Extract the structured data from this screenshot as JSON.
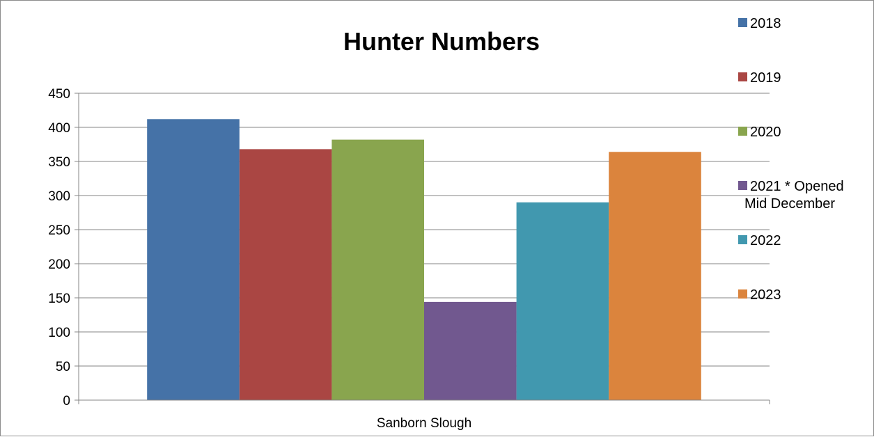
{
  "chart_data": {
    "type": "bar",
    "title": "Hunter Numbers",
    "categories": [
      "Sanborn Slough"
    ],
    "series": [
      {
        "name": "2018",
        "values": [
          412
        ],
        "color": "#4572a7"
      },
      {
        "name": "2019",
        "values": [
          368
        ],
        "color": "#aa4643"
      },
      {
        "name": "2020",
        "values": [
          382
        ],
        "color": "#89a54e"
      },
      {
        "name": "2021 * Opened Mid December",
        "values": [
          144
        ],
        "color": "#71588f"
      },
      {
        "name": "2022",
        "values": [
          290
        ],
        "color": "#4198af"
      },
      {
        "name": "2023",
        "values": [
          364
        ],
        "color": "#db843d"
      }
    ],
    "ylim": [
      0,
      450
    ],
    "yticks": [
      "0",
      "50",
      "100",
      "150",
      "200",
      "250",
      "300",
      "350",
      "400",
      "450"
    ],
    "grid": true,
    "legend_position": "right"
  }
}
